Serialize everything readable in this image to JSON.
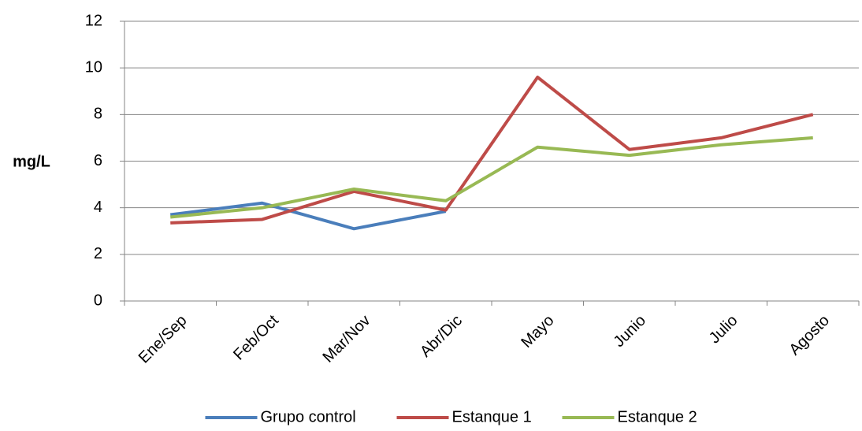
{
  "chart_data": {
    "type": "line",
    "y_label": "mg/L",
    "categories": [
      "Ene/Sep",
      "Feb/Oct",
      "Mar/Nov",
      "Abr/Dic",
      "Mayo",
      "Junio",
      "Julio",
      "Agosto"
    ],
    "series": [
      {
        "name": "Grupo control",
        "color": "#4a7ebb",
        "values": [
          3.7,
          4.2,
          3.1,
          3.85,
          null,
          null,
          null,
          null
        ]
      },
      {
        "name": "Estanque 1",
        "color": "#be4b48",
        "values": [
          3.35,
          3.5,
          4.7,
          3.9,
          9.6,
          6.5,
          7.0,
          8.0
        ]
      },
      {
        "name": "Estanque 2",
        "color": "#98b954",
        "values": [
          3.6,
          4.0,
          4.8,
          4.3,
          6.6,
          6.25,
          6.7,
          7.0
        ]
      }
    ],
    "ylim": [
      0,
      12
    ],
    "yticks": [
      0,
      2,
      4,
      6,
      8,
      10,
      12
    ],
    "grid": true,
    "legend": "bottom"
  }
}
